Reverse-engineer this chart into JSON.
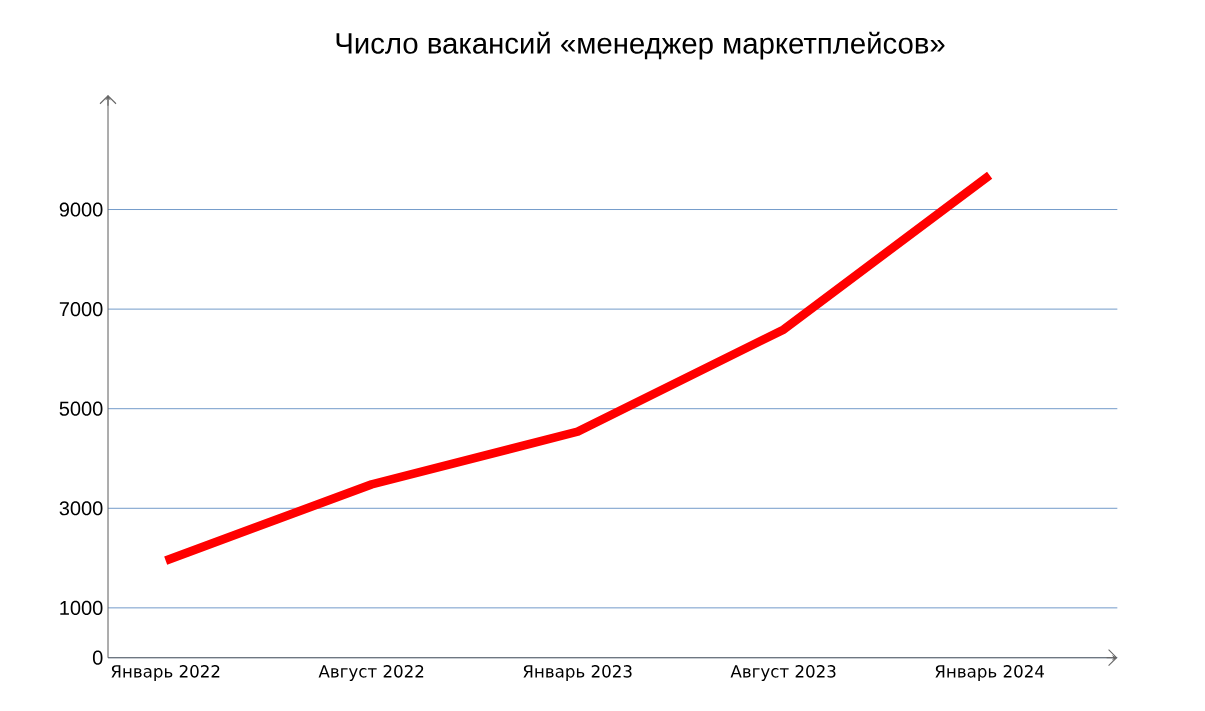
{
  "chart_data": {
    "type": "line",
    "title": "Число вакансий «менеджер маркетплейсов»",
    "categories": [
      "Январь 2022",
      "Август 2022",
      "Январь 2023",
      "Август 2023",
      "Январь 2024"
    ],
    "series": [
      {
        "color": "#ff0000",
        "values": [
          1950,
          3480,
          4540,
          6590,
          9690
        ]
      }
    ],
    "ylim": [
      0,
      11300
    ],
    "yticks": [
      0,
      1000,
      3000,
      5000,
      7000,
      9000
    ],
    "grid": "y"
  }
}
